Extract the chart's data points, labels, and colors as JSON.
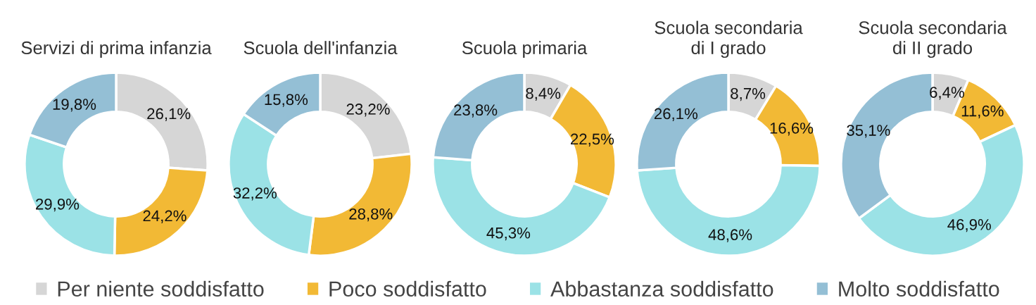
{
  "chart_data": [
    {
      "type": "donut",
      "title": "Servizi di prima infanzia",
      "categories": [
        "Per niente soddisfatto",
        "Poco soddisfatto",
        "Abbastanza soddisfatto",
        "Molto soddisfatto"
      ],
      "values": [
        26.1,
        24.2,
        29.9,
        19.8
      ],
      "colors": [
        "#d6d6d6",
        "#f2b935",
        "#9be2e6",
        "#94bfd5"
      ],
      "value_labels": [
        "26,1%",
        "24,2%",
        "29,9%",
        "19,8%"
      ],
      "legend": "bottom"
    },
    {
      "type": "donut",
      "title": "Scuola dell'infanzia",
      "categories": [
        null,
        null,
        null,
        null
      ],
      "values": [
        23.2,
        28.8,
        32.2,
        15.8
      ],
      "colors": [
        "#d6d6d6",
        "#f2b935",
        "#9be2e6",
        "#94bfd5"
      ],
      "value_labels": [
        "23,2%",
        "28,8%",
        "32,2%",
        "15,8%"
      ]
    },
    {
      "type": "donut",
      "title": "Scuola primaria",
      "categories": [
        null,
        null,
        null,
        null
      ],
      "values": [
        8.4,
        22.5,
        45.3,
        23.8
      ],
      "colors": [
        "#d6d6d6",
        "#f2b935",
        "#9be2e6",
        "#94bfd5"
      ],
      "value_labels": [
        "8,4%",
        "22,5%",
        "45,3%",
        "23,8%"
      ]
    },
    {
      "type": "donut",
      "title": "Scuola secondaria\ndi I grado",
      "categories": [
        null,
        null,
        null,
        null
      ],
      "values": [
        8.7,
        16.6,
        48.6,
        26.1
      ],
      "colors": [
        "#d6d6d6",
        "#f2b935",
        "#9be2e6",
        "#94bfd5"
      ],
      "value_labels": [
        "8,7%",
        "16,6%",
        "48,6%",
        "26,1%"
      ]
    },
    {
      "type": "donut",
      "title": "Scuola secondaria\ndi II grado",
      "categories": [
        null,
        null,
        null,
        null
      ],
      "values": [
        6.4,
        11.6,
        46.9,
        35.1
      ],
      "colors": [
        "#d6d6d6",
        "#f2b935",
        "#9be2e6",
        "#94bfd5"
      ],
      "value_labels": [
        "6,4%",
        "11,6%",
        "46,9%",
        "35,1%"
      ]
    }
  ]
}
